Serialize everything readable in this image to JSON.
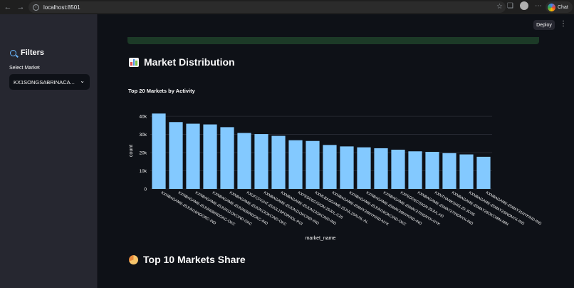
{
  "browser": {
    "url": "localhost:8501",
    "chat_label": "Chat"
  },
  "sidebar": {
    "filters_title": "Filters",
    "select_label": "Select Market",
    "select_value": "KX1SONGSABRINACA..."
  },
  "toolbar": {
    "deploy_label": "Deploy",
    "more_icon": "⋮"
  },
  "sections": {
    "market_distribution": "Market Distribution",
    "top10_share": "Top 10 Markets Share"
  },
  "colors": {
    "bar": "#83c9ff",
    "background": "#0e1117",
    "sidebar": "#262730"
  },
  "chart_data": {
    "type": "bar",
    "title": "Top 20 Markets by Activity",
    "xlabel": "market_name",
    "ylabel": "count",
    "ylim": [
      0,
      42000
    ],
    "yticks": [
      0,
      10000,
      20000,
      30000,
      40000
    ],
    "ytick_labels": [
      "0",
      "10k",
      "20k",
      "30k",
      "40k"
    ],
    "categories": [
      "KXNBAGAME-25JUN16NOORC-IND",
      "KXNBAGAME-25JUN08INDOKC-OKC",
      "KXNBAGAME-25JUN11OKCIND-OKC",
      "KXNBAGAME-25JUN05INDOKC-IND",
      "KXNBAGAME-25JUN13OKCIND-OKC",
      "KXUFCFIGHT-25JUL19PORHOL-POI",
      "KXNBAGAME-25JUN11OKCIND-IND",
      "KXNBAGAME-25JUN13OKCIND-IND",
      "KXFEDDECISION-25JUL-C25",
      "KXMLBASGAME-25JUL15ALNL-AL",
      "KXNBAGAME-25MAY29NYKIND-NYK",
      "KXNBAGAME-25JUN16OKCIND-OKC",
      "KXNBAGAME-25MAY29NYKIND-IND",
      "KXNBAGAME-25MAY27INDNYK-NYK",
      "KXFEDDECISION-25JUL-H0",
      "KXNBAGAME-25MAY27INDNYK-IND",
      "KXNTHANKSHIS-25-JCHE",
      "KXNBAGAME-25MAY26OKCMIN-MIN",
      "KXNBAGAME-25MAY23INDNYK-IND",
      "KXNBAGAME-25MAY31NYKIND-IND"
    ],
    "values": [
      41500,
      36800,
      35900,
      35500,
      34000,
      30800,
      30200,
      29200,
      26800,
      26400,
      24200,
      23400,
      22900,
      22400,
      21600,
      20700,
      20400,
      19700,
      19000,
      17700
    ]
  }
}
